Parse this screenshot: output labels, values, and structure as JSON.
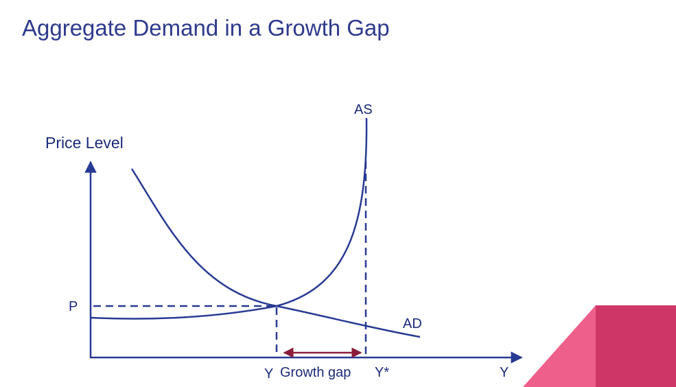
{
  "slide": {
    "title": "Aggregate Demand in a Growth Gap"
  },
  "diagram": {
    "y_axis_label": "Price Level",
    "x_axis_label": "Y",
    "curve_as_label": "AS",
    "curve_ad_label": "AD",
    "price_label": "P",
    "output_label": "Y",
    "potential_output_label": "Y*",
    "gap_label": "Growth gap"
  },
  "colors": {
    "curve": "#283a93",
    "text": "#1b2a78",
    "title": "#2e3a8c",
    "gap_arrow": "#8b1d3a",
    "accent_pink": "#ee5f8b",
    "accent_magenta": "#cf3668"
  }
}
